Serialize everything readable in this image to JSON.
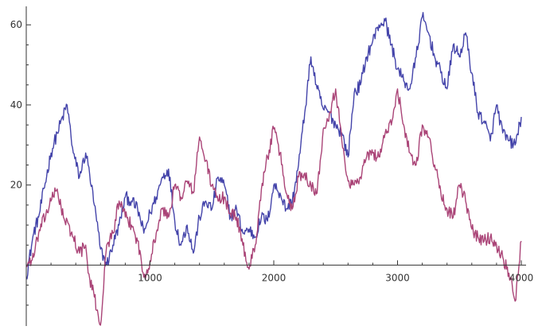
{
  "chart_data": {
    "type": "line",
    "title": "",
    "xlabel": "",
    "ylabel": "",
    "xlim": [
      0,
      4000
    ],
    "ylim": [
      -16,
      66
    ],
    "grid": false,
    "x_ticks": [
      1000,
      2000,
      3000,
      4000
    ],
    "x_tick_labels": [
      "1000",
      "2000",
      "3000",
      "4000"
    ],
    "y_ticks": [
      20,
      40,
      60
    ],
    "y_tick_labels": [
      "20",
      "40",
      "60"
    ],
    "series": [
      {
        "color": "#4444aa",
        "x": [
          0,
          60,
          100,
          200,
          250,
          330,
          380,
          430,
          480,
          500,
          550,
          600,
          650,
          700,
          750,
          800,
          850,
          900,
          950,
          1000,
          1050,
          1100,
          1150,
          1200,
          1250,
          1300,
          1350,
          1400,
          1450,
          1500,
          1550,
          1600,
          1650,
          1700,
          1750,
          1800,
          1850,
          1900,
          1950,
          2000,
          2050,
          2100,
          2150,
          2200,
          2250,
          2300,
          2350,
          2400,
          2450,
          2500,
          2550,
          2600,
          2650,
          2700,
          2750,
          2800,
          2850,
          2900,
          2950,
          3000,
          3050,
          3100,
          3150,
          3200,
          3250,
          3300,
          3350,
          3400,
          3450,
          3500,
          3550,
          3600,
          3650,
          3700,
          3750,
          3800,
          3850,
          3900,
          3950,
          4000
        ],
        "y": [
          -3,
          8,
          12,
          28,
          33,
          40,
          28,
          22,
          28,
          25,
          15,
          4,
          0,
          5,
          10,
          17,
          16,
          14,
          8,
          13,
          17,
          22,
          24,
          11,
          5,
          10,
          3,
          12,
          16,
          14,
          22,
          20,
          12,
          14,
          8,
          9,
          7,
          12,
          11,
          20,
          18,
          14,
          16,
          25,
          38,
          52,
          44,
          39,
          38,
          35,
          33,
          27,
          43,
          45,
          52,
          56,
          60,
          61,
          55,
          49,
          46,
          44,
          52,
          62,
          58,
          52,
          48,
          44,
          55,
          52,
          58,
          48,
          38,
          36,
          31,
          40,
          33,
          31,
          30,
          37
        ]
      },
      {
        "color": "#aa4477",
        "x": [
          0,
          60,
          100,
          200,
          250,
          300,
          380,
          430,
          480,
          500,
          550,
          600,
          650,
          700,
          750,
          800,
          850,
          900,
          950,
          1000,
          1050,
          1100,
          1150,
          1200,
          1250,
          1300,
          1350,
          1400,
          1450,
          1500,
          1550,
          1600,
          1650,
          1700,
          1750,
          1800,
          1850,
          1900,
          1950,
          2000,
          2050,
          2100,
          2150,
          2200,
          2250,
          2300,
          2350,
          2400,
          2450,
          2500,
          2550,
          2600,
          2650,
          2700,
          2750,
          2800,
          2850,
          2900,
          2950,
          3000,
          3050,
          3100,
          3150,
          3200,
          3250,
          3300,
          3350,
          3400,
          3450,
          3500,
          3550,
          3600,
          3650,
          3700,
          3750,
          3800,
          3850,
          3900,
          3950,
          4000
        ],
        "y": [
          0,
          2,
          8,
          16,
          19,
          12,
          7,
          3,
          5,
          -2,
          -8,
          -15,
          5,
          8,
          16,
          12,
          10,
          6,
          -3,
          1,
          8,
          14,
          12,
          20,
          17,
          21,
          18,
          32,
          26,
          20,
          16,
          17,
          13,
          12,
          5,
          -1,
          5,
          19,
          27,
          34,
          28,
          18,
          14,
          22,
          23,
          20,
          18,
          34,
          38,
          44,
          31,
          21,
          20,
          22,
          27,
          28,
          27,
          33,
          35,
          44,
          35,
          28,
          25,
          35,
          32,
          25,
          18,
          14,
          12,
          20,
          16,
          9,
          7,
          6,
          7,
          5,
          2,
          -2,
          -9,
          6
        ]
      }
    ]
  }
}
